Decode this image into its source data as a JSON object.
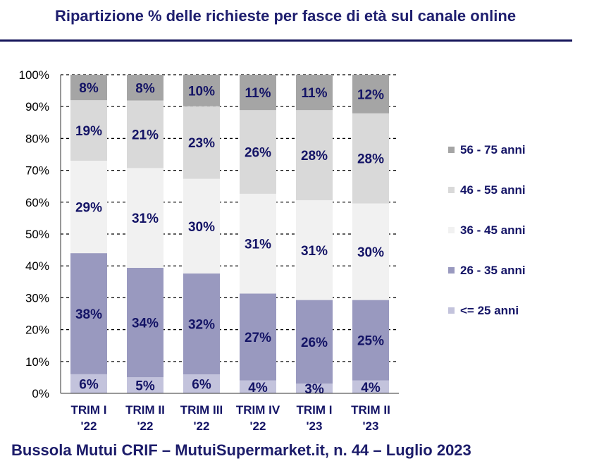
{
  "title": "Ripartizione %  delle richieste per fasce di età sul canale online",
  "footer": "Bussola Mutui CRIF – MutuiSupermarket.it, n. 44 – Luglio 2023",
  "colors": {
    "title": "#1f1f6f",
    "label": "#141466",
    "axis_text": "#000000",
    "grid": "#000000"
  },
  "chart_data": {
    "type": "bar",
    "stacked": true,
    "title": "Ripartizione %  delle richieste per fasce di età sul canale online",
    "categories": [
      [
        "TRIM I",
        "'22"
      ],
      [
        "TRIM II",
        "'22"
      ],
      [
        "TRIM III",
        "'22"
      ],
      [
        "TRIM IV",
        "'22"
      ],
      [
        "TRIM I",
        "'23"
      ],
      [
        "TRIM II",
        "'23"
      ]
    ],
    "ylim": [
      0,
      100
    ],
    "yticks": [
      0,
      10,
      20,
      30,
      40,
      50,
      60,
      70,
      80,
      90,
      100
    ],
    "ytick_labels": [
      "0%",
      "10%",
      "20%",
      "30%",
      "40%",
      "50%",
      "60%",
      "70%",
      "80%",
      "90%",
      "100%"
    ],
    "grid": true,
    "legend_position": "right",
    "series": [
      {
        "name": "<= 25 anni",
        "color": "#c3c3dc",
        "values": [
          6,
          5,
          6,
          4,
          3,
          4
        ],
        "labels": [
          "6%",
          "5%",
          "6%",
          "4%",
          "3%",
          "4%"
        ]
      },
      {
        "name": "26 - 35 anni",
        "color": "#9999bf",
        "values": [
          38,
          34,
          32,
          27,
          26,
          25
        ],
        "labels": [
          "38%",
          "34%",
          "32%",
          "27%",
          "26%",
          "25%"
        ]
      },
      {
        "name": "36 - 45 anni",
        "color": "#f1f1f1",
        "values": [
          29,
          31,
          30,
          31,
          31,
          30
        ],
        "labels": [
          "29%",
          "31%",
          "30%",
          "31%",
          "31%",
          "30%"
        ]
      },
      {
        "name": "46 - 55 anni",
        "color": "#d9d9d9",
        "values": [
          19,
          21,
          23,
          26,
          28,
          28
        ],
        "labels": [
          "19%",
          "21%",
          "23%",
          "26%",
          "28%",
          "28%"
        ]
      },
      {
        "name": "56 - 75 anni",
        "color": "#a5a5a5",
        "values": [
          8,
          8,
          10,
          11,
          11,
          12
        ],
        "labels": [
          "8%",
          "8%",
          "10%",
          "11%",
          "11%",
          "12%"
        ]
      }
    ]
  }
}
